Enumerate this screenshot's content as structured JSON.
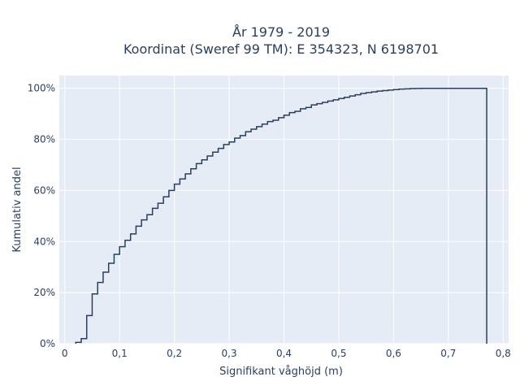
{
  "chart_data": {
    "type": "line",
    "line_shape": "step",
    "title_lines": [
      "År 1979 - 2019",
      "Koordinat (Sweref 99 TM): E 354323, N 6198701"
    ],
    "xlabel": "Signifikant våghöjd (m)",
    "ylabel": "Kumulativ andel",
    "xlim": [
      -0.01,
      0.81
    ],
    "ylim": [
      0,
      1.05
    ],
    "x_ticks": [
      0,
      0.1,
      0.2,
      0.3,
      0.4,
      0.5,
      0.6,
      0.7,
      0.8
    ],
    "x_tick_labels": [
      "0",
      "0,1",
      "0,2",
      "0,3",
      "0,4",
      "0,5",
      "0,6",
      "0,7",
      "0,8"
    ],
    "y_ticks": [
      0,
      0.2,
      0.4,
      0.6,
      0.8,
      1.0
    ],
    "y_tick_labels": [
      "0%",
      "20%",
      "40%",
      "60%",
      "80%",
      "100%"
    ],
    "grid": true,
    "colors": {
      "plot_bg": "#e5ecf6",
      "grid": "#ffffff",
      "line": "#2a3f5f",
      "text": "#2a3f5f"
    },
    "series": [
      {
        "x": [
          0.02,
          0.03,
          0.04,
          0.05,
          0.06,
          0.07,
          0.08,
          0.09,
          0.1,
          0.11,
          0.12,
          0.13,
          0.14,
          0.15,
          0.16,
          0.17,
          0.18,
          0.19,
          0.2,
          0.21,
          0.22,
          0.23,
          0.24,
          0.25,
          0.26,
          0.27,
          0.28,
          0.29,
          0.3,
          0.31,
          0.32,
          0.33,
          0.34,
          0.35,
          0.36,
          0.37,
          0.38,
          0.39,
          0.4,
          0.41,
          0.42,
          0.43,
          0.44,
          0.45,
          0.46,
          0.47,
          0.48,
          0.49,
          0.5,
          0.51,
          0.52,
          0.53,
          0.54,
          0.55,
          0.56,
          0.57,
          0.58,
          0.59,
          0.6,
          0.61,
          0.62,
          0.63,
          0.64,
          0.65,
          0.7,
          0.77
        ],
        "y": [
          0.005,
          0.02,
          0.11,
          0.195,
          0.24,
          0.28,
          0.315,
          0.35,
          0.38,
          0.405,
          0.43,
          0.46,
          0.485,
          0.505,
          0.53,
          0.55,
          0.575,
          0.6,
          0.625,
          0.645,
          0.665,
          0.685,
          0.705,
          0.72,
          0.735,
          0.75,
          0.765,
          0.78,
          0.79,
          0.805,
          0.815,
          0.83,
          0.84,
          0.85,
          0.86,
          0.87,
          0.875,
          0.885,
          0.895,
          0.905,
          0.91,
          0.92,
          0.925,
          0.935,
          0.94,
          0.945,
          0.95,
          0.955,
          0.96,
          0.965,
          0.97,
          0.975,
          0.98,
          0.983,
          0.986,
          0.989,
          0.991,
          0.993,
          0.995,
          0.997,
          0.998,
          0.999,
          0.9995,
          1.0,
          1.0,
          1.0
        ]
      }
    ]
  }
}
